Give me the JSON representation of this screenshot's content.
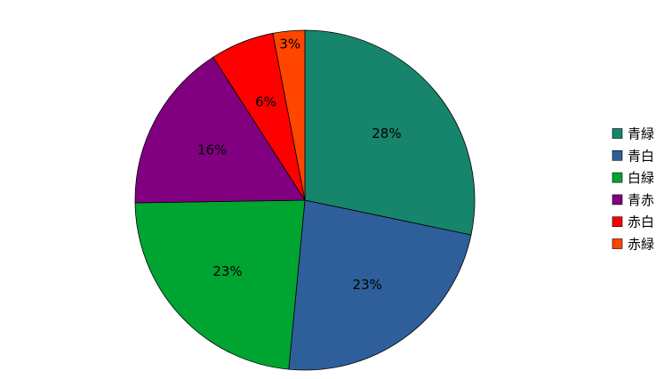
{
  "chart_data": {
    "type": "pie",
    "categories": [
      "青緑",
      "青白",
      "白緑",
      "青赤",
      "赤白",
      "赤緑"
    ],
    "values": [
      28,
      23,
      23,
      16,
      6,
      3
    ],
    "value_labels": [
      "28%",
      "23%",
      "23%",
      "16%",
      "6%",
      "3%"
    ],
    "colors": [
      "#17856b",
      "#2e5f9a",
      "#00a431",
      "#800080",
      "#ff0000",
      "#ff4500"
    ],
    "legend": "right"
  }
}
